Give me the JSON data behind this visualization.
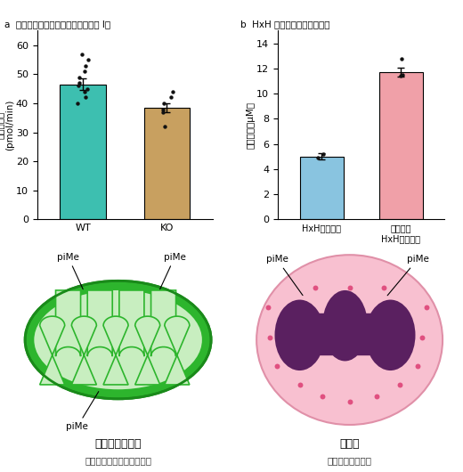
{
  "panel_a_title": "a  ミトコンドリア呼吸活性（複合体 I）",
  "panel_b_title": "b  HxH ペプチドと亜邉の結合",
  "bar_a_values": [
    46.5,
    38.5
  ],
  "bar_a_errors": [
    2.0,
    1.5
  ],
  "bar_a_colors": [
    "#3dbfb0",
    "#c8a060"
  ],
  "bar_a_labels": [
    "WT",
    "KO"
  ],
  "bar_a_ylabel": "酸素消費量\n(pmol/min)",
  "bar_a_ylim": [
    0,
    65
  ],
  "bar_a_yticks": [
    0,
    10,
    20,
    30,
    40,
    50,
    60
  ],
  "bar_a_dots_wt": [
    57,
    55,
    53,
    51,
    49,
    47,
    46,
    45,
    44,
    42,
    40
  ],
  "bar_a_dots_ko": [
    44,
    42,
    40,
    38,
    37,
    32
  ],
  "bar_b_values": [
    5.0,
    11.7
  ],
  "bar_b_errors": [
    0.25,
    0.35
  ],
  "bar_b_colors": [
    "#89c4e0",
    "#f0a0a8"
  ],
  "bar_b_labels": [
    "HxHペプチド",
    "メチル化\nHxHペプチド"
  ],
  "bar_b_ylabel": "解離定数（μM）",
  "bar_b_ylim": [
    0,
    15
  ],
  "bar_b_yticks": [
    0.0,
    2.0,
    4.0,
    6.0,
    8.0,
    10.0,
    12.0,
    14.0
  ],
  "bar_b_dots_hxh": [
    5.2,
    4.9
  ],
  "bar_b_dots_me": [
    12.8,
    11.5,
    11.4
  ],
  "mito_label": "ミトコンドリア",
  "mito_sublabel": "酸化的リン酸化活性の調節",
  "neutro_label": "好中球",
  "neutro_sublabel": "免疫・感染防御？",
  "bg_color": "#ffffff",
  "green_dark": "#2db52d",
  "green_light": "#c8eec0",
  "green_mid": "#6dcc6d",
  "pink_outer": "#f8c0d0",
  "pink_border": "#e090a8",
  "purple_nucleus": "#5a2060",
  "pink_dots": "#e05080"
}
